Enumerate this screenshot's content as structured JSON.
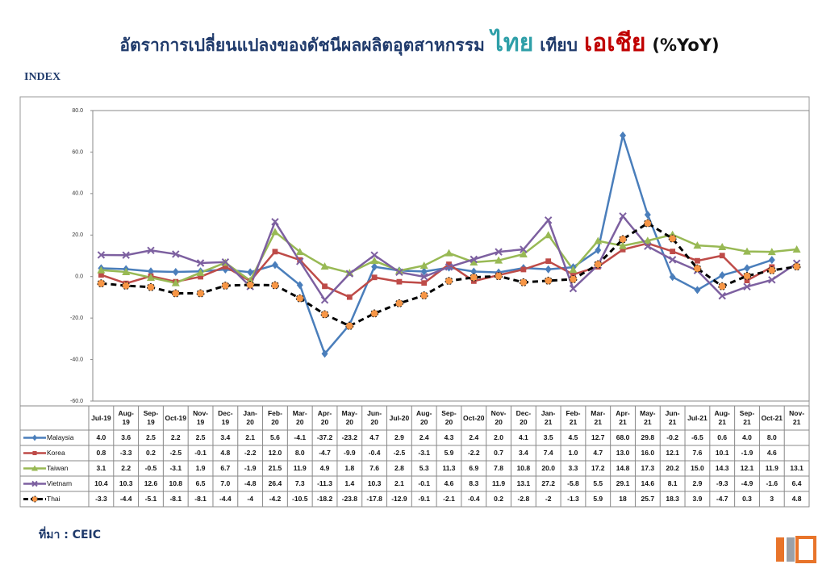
{
  "chart_data": {
    "type": "line",
    "title": [
      "อัตราการเปลี่ยนแปลงของดัชนีผลผลิตอุตสาหกรรม",
      "ไทย",
      "เทียบ",
      "เอเชีย",
      "(%YoY)"
    ],
    "title_colors": [
      "#1f3a6b",
      "#2e9fa8",
      "#1f3a6b",
      "#c00000",
      "#111111"
    ],
    "y_label": "INDEX",
    "source": "ที่มา : CEIC",
    "categories": [
      "Jul-19",
      "Aug-19",
      "Sep-19",
      "Oct-19",
      "Nov-19",
      "Dec-19",
      "Jan-20",
      "Feb-20",
      "Mar-20",
      "Apr-20",
      "May-20",
      "Jun-20",
      "Jul-20",
      "Aug-20",
      "Sep-20",
      "Oct-20",
      "Nov-20",
      "Dec-20",
      "Jan-21",
      "Feb-21",
      "Mar-21",
      "Apr-21",
      "May-21",
      "Jun-21",
      "Jul-21",
      "Aug-21",
      "Sep-21",
      "Oct-21",
      "Nov-21"
    ],
    "ylim": [
      -60,
      80
    ],
    "yticks": [
      {
        "value": -60,
        "label": "-60.0"
      },
      {
        "value": -40,
        "label": "-40.0"
      },
      {
        "value": -20,
        "label": "-20.0"
      },
      {
        "value": 0,
        "label": "0.0"
      },
      {
        "value": 20,
        "label": "20.0"
      },
      {
        "value": 40,
        "label": "40.0"
      },
      {
        "value": 60,
        "label": "60.0"
      },
      {
        "value": 80,
        "label": "80.0"
      }
    ],
    "grid": false,
    "series": [
      {
        "name": "Malaysia",
        "color": "#4a7ebb",
        "marker": "diamond",
        "dashed": false,
        "values": [
          4.0,
          3.6,
          2.5,
          2.2,
          2.5,
          3.4,
          2.1,
          5.6,
          -4.1,
          -37.2,
          -23.2,
          4.7,
          2.9,
          2.4,
          4.3,
          2.4,
          2.0,
          4.1,
          3.5,
          4.5,
          12.7,
          68.0,
          29.8,
          -0.2,
          -6.5,
          0.6,
          4.0,
          8.0,
          null
        ],
        "value_labels": [
          "4.0",
          "3.6",
          "2.5",
          "2.2",
          "2.5",
          "3.4",
          "2.1",
          "5.6",
          "-4.1",
          "-37.2",
          "-23.2",
          "4.7",
          "2.9",
          "2.4",
          "4.3",
          "2.4",
          "2.0",
          "4.1",
          "3.5",
          "4.5",
          "12.7",
          "68.0",
          "29.8",
          "-0.2",
          "-6.5",
          "0.6",
          "4.0",
          "8.0",
          null
        ]
      },
      {
        "name": "Korea",
        "color": "#be4b48",
        "marker": "square",
        "dashed": false,
        "values": [
          0.8,
          -3.3,
          0.2,
          -2.5,
          -0.1,
          4.8,
          -2.2,
          12.0,
          8.0,
          -4.7,
          -9.9,
          -0.4,
          -2.5,
          -3.1,
          5.9,
          -2.2,
          0.7,
          3.4,
          7.4,
          1.0,
          4.7,
          13.0,
          16.0,
          12.1,
          7.6,
          10.1,
          -1.9,
          4.6,
          null
        ],
        "value_labels": [
          "0.8",
          "-3.3",
          "0.2",
          "-2.5",
          "-0.1",
          "4.8",
          "-2.2",
          "12.0",
          "8.0",
          "-4.7",
          "-9.9",
          "-0.4",
          "-2.5",
          "-3.1",
          "5.9",
          "-2.2",
          "0.7",
          "3.4",
          "7.4",
          "1.0",
          "4.7",
          "13.0",
          "16.0",
          "12.1",
          "7.6",
          "10.1",
          "-1.9",
          "4.6",
          null
        ]
      },
      {
        "name": "Taiwan",
        "color": "#98b954",
        "marker": "triangle",
        "dashed": false,
        "values": [
          3.1,
          2.2,
          -0.5,
          -3.1,
          1.9,
          6.7,
          -1.9,
          21.5,
          11.9,
          4.9,
          1.8,
          7.6,
          2.8,
          5.3,
          11.3,
          6.9,
          7.8,
          10.8,
          20.0,
          3.3,
          17.2,
          14.8,
          17.3,
          20.2,
          15.0,
          14.3,
          12.1,
          11.9,
          13.1
        ],
        "value_labels": [
          "3.1",
          "2.2",
          "-0.5",
          "-3.1",
          "1.9",
          "6.7",
          "-1.9",
          "21.5",
          "11.9",
          "4.9",
          "1.8",
          "7.6",
          "2.8",
          "5.3",
          "11.3",
          "6.9",
          "7.8",
          "10.8",
          "20.0",
          "3.3",
          "17.2",
          "14.8",
          "17.3",
          "20.2",
          "15.0",
          "14.3",
          "12.1",
          "11.9",
          "13.1"
        ]
      },
      {
        "name": "Vietnam",
        "color": "#7d60a0",
        "marker": "x",
        "dashed": false,
        "values": [
          10.4,
          10.3,
          12.6,
          10.8,
          6.5,
          7.0,
          -4.8,
          26.4,
          7.3,
          -11.3,
          1.4,
          10.3,
          2.1,
          -0.1,
          4.6,
          8.3,
          11.9,
          13.1,
          27.2,
          -5.8,
          5.5,
          29.1,
          14.6,
          8.1,
          2.9,
          -9.3,
          -4.9,
          -1.6,
          6.4
        ],
        "value_labels": [
          "10.4",
          "10.3",
          "12.6",
          "10.8",
          "6.5",
          "7.0",
          "-4.8",
          "26.4",
          "7.3",
          "-11.3",
          "1.4",
          "10.3",
          "2.1",
          "-0.1",
          "4.6",
          "8.3",
          "11.9",
          "13.1",
          "27.2",
          "-5.8",
          "5.5",
          "29.1",
          "14.6",
          "8.1",
          "2.9",
          "-9.3",
          "-4.9",
          "-1.6",
          "6.4"
        ]
      },
      {
        "name": "Thai",
        "color": "#000000",
        "marker": "circle",
        "marker_color": "#f79646",
        "dashed": true,
        "values": [
          -3.3,
          -4.4,
          -5.1,
          -8.1,
          -8.1,
          -4.4,
          -4,
          -4.2,
          -10.5,
          -18.2,
          -23.8,
          -17.8,
          -12.9,
          -9.1,
          -2.1,
          -0.4,
          0.2,
          -2.8,
          -2,
          -1.3,
          5.9,
          18,
          25.7,
          18.3,
          3.9,
          -4.7,
          0.3,
          3,
          4.8
        ],
        "value_labels": [
          "-3.3",
          "-4.4",
          "-5.1",
          "-8.1",
          "-8.1",
          "-4.4",
          "-4",
          "-4.2",
          "-10.5",
          "-18.2",
          "-23.8",
          "-17.8",
          "-12.9",
          "-9.1",
          "-2.1",
          "-0.4",
          "0.2",
          "-2.8",
          "-2",
          "-1.3",
          "5.9",
          "18",
          "25.7",
          "18.3",
          "3.9",
          "-4.7",
          "0.3",
          "3",
          "4.8"
        ]
      }
    ]
  }
}
